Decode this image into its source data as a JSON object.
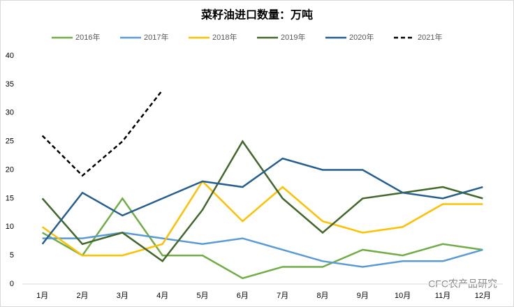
{
  "chart_data": {
    "type": "line",
    "title": "菜籽油进口数量：万吨",
    "categories": [
      "1月",
      "2月",
      "3月",
      "4月",
      "5月",
      "6月",
      "7月",
      "8月",
      "9月",
      "10月",
      "11月",
      "12月"
    ],
    "series": [
      {
        "name": "2016年",
        "color": "#70ad47",
        "values": [
          9,
          5,
          15,
          5,
          5,
          1,
          3,
          3,
          6,
          5,
          7,
          6
        ]
      },
      {
        "name": "2017年",
        "color": "#5b9bd5",
        "values": [
          8,
          8,
          9,
          8,
          7,
          8,
          6,
          4,
          3,
          4,
          4,
          6
        ]
      },
      {
        "name": "2018年",
        "color": "#ffc000",
        "values": [
          10,
          5,
          5,
          7,
          18,
          11,
          17,
          11,
          9,
          10,
          14,
          14
        ]
      },
      {
        "name": "2019年",
        "color": "#43682b",
        "values": [
          15,
          7,
          9,
          4,
          13,
          25,
          15,
          9,
          15,
          16,
          17,
          15
        ]
      },
      {
        "name": "2020年",
        "color": "#255e91",
        "values": [
          7,
          16,
          12,
          15,
          18,
          17,
          22,
          20,
          20,
          16,
          15,
          17
        ]
      },
      {
        "name": "2021年",
        "color": "#000000",
        "dashed": true,
        "values": [
          26,
          19,
          25,
          34,
          null,
          null,
          null,
          null,
          null,
          null,
          null,
          null
        ]
      }
    ],
    "ylim": [
      0,
      40
    ],
    "yticks": [
      0,
      5,
      10,
      15,
      20,
      25,
      30,
      35,
      40
    ],
    "grid": false,
    "legend": "top",
    "watermark": "CFC农产品研究"
  }
}
